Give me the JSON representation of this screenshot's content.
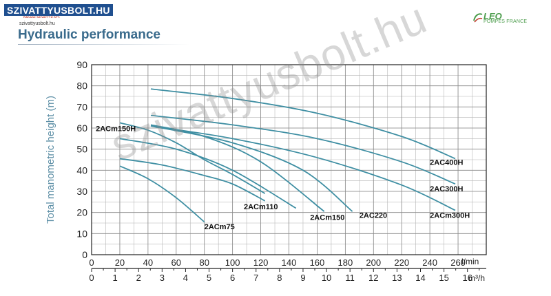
{
  "header": {
    "logo_text": "SZIVATTYUSBOLT.HU",
    "logo_subtext": "RAKASZ·SZIVATTYÚ KFT.",
    "site_url": "szivattyusbolt.hu",
    "title": "Hydraulic performance",
    "brand_name": "LEO",
    "brand_sub": "POMPES FRANCE",
    "brand_color": "#4a9b4a",
    "title_color": "#3a6b8c",
    "logo_color": "#1f4f8f"
  },
  "watermark": "szivattyusbolt.hu",
  "chart_data": {
    "type": "line",
    "title": "",
    "ylabel": "Total manometric height (m)",
    "xlabel": "l/min",
    "x2label": "m³/h",
    "xlim": [
      0,
      280
    ],
    "ylim": [
      0,
      90
    ],
    "x2lim": [
      0,
      16.8
    ],
    "x_ticks": [
      0,
      20,
      40,
      60,
      80,
      100,
      120,
      140,
      160,
      180,
      200,
      220,
      240,
      260
    ],
    "x2_ticks": [
      0,
      1,
      2,
      3,
      4,
      5,
      6,
      7,
      8,
      9,
      10,
      11,
      12,
      13,
      14,
      15,
      16
    ],
    "y_ticks": [
      0,
      10,
      20,
      30,
      40,
      50,
      60,
      70,
      80,
      90
    ],
    "grid": true,
    "line_color": "#3f8fa3",
    "series": [
      {
        "name": "2ACm75",
        "x": [
          20,
          40,
          60,
          80
        ],
        "y": [
          42,
          36,
          27,
          15.5
        ]
      },
      {
        "name": "2ACm110",
        "x": [
          20,
          50,
          80,
          100,
          123
        ],
        "y": [
          45.5,
          42.5,
          37.5,
          33.5,
          25.5
        ]
      },
      {
        "name": "2ACm150H",
        "x": [
          20,
          40,
          60,
          80,
          100,
          123
        ],
        "y": [
          62.5,
          59,
          53,
          45,
          38,
          29
        ]
      },
      {
        "name": "2ACm110",
        "x": [
          20,
          60,
          100,
          145
        ],
        "y": [
          55,
          50,
          40,
          22
        ]
      },
      {
        "name": "2ACm150",
        "x": [
          42,
          80,
          120,
          165
        ],
        "y": [
          61.5,
          56,
          44,
          20.5
        ]
      },
      {
        "name": "2AC220",
        "x": [
          42,
          100,
          150,
          185
        ],
        "y": [
          61,
          53,
          40,
          20.5
        ]
      },
      {
        "name": "2ACm300H",
        "x": [
          42,
          100,
          160,
          220,
          258
        ],
        "y": [
          61,
          55,
          46,
          33,
          21
        ]
      },
      {
        "name": "2AC300H",
        "x": [
          42,
          100,
          160,
          220,
          258
        ],
        "y": [
          66,
          61.5,
          55,
          44,
          33.5
        ]
      },
      {
        "name": "2AC400H",
        "x": [
          42,
          100,
          160,
          220,
          258
        ],
        "y": [
          78.5,
          74,
          67,
          56,
          45.5
        ]
      }
    ],
    "labels": [
      {
        "text": "2ACm75",
        "x": 80,
        "y": 12
      },
      {
        "text": "2ACm110",
        "x": 108,
        "y": 21.5
      },
      {
        "text": "2ACm150H",
        "x": 3,
        "y": 58.5
      },
      {
        "text": "2ACm150",
        "x": 155,
        "y": 16.5
      },
      {
        "text": "2AC220",
        "x": 190,
        "y": 17.5
      },
      {
        "text": "2ACm300H",
        "x": 240,
        "y": 17.5
      },
      {
        "text": "2AC300H",
        "x": 240,
        "y": 30
      },
      {
        "text": "2AC400H",
        "x": 240,
        "y": 42.5
      }
    ]
  }
}
